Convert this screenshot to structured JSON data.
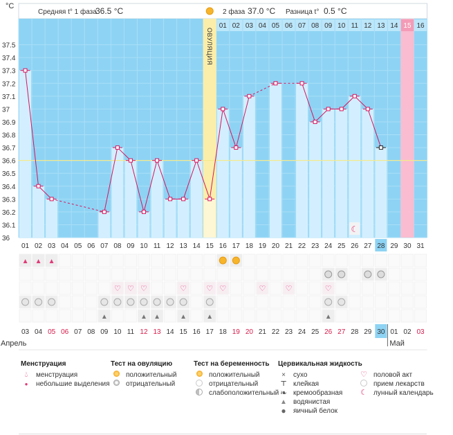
{
  "header": {
    "unit": "°C",
    "phase1_label": "Средняя t° 1 фаза",
    "phase1_value": "36.5 °C",
    "phase2_label": "2 фаза",
    "phase2_value": "37.0 °C",
    "diff_label": "Разница t°",
    "diff_value": "0.5 °C",
    "ovulation_label": "ОВУЛЯЦИЯ"
  },
  "chart_data": {
    "type": "line",
    "title": "",
    "ylabel": "°C",
    "ylim": [
      36.0,
      37.6
    ],
    "y_ticks": [
      "37.5",
      "37.4",
      "37.3",
      "37.2",
      "37.1",
      "37",
      "36.9",
      "36.8",
      "36.7",
      "36.6",
      "36.5",
      "36.4",
      "36.3",
      "36.2",
      "36.1",
      "36"
    ],
    "days": [
      "01",
      "02",
      "03",
      "04",
      "05",
      "06",
      "07",
      "08",
      "09",
      "10",
      "11",
      "12",
      "13",
      "14",
      "15",
      "16",
      "17",
      "18",
      "19",
      "20",
      "21",
      "22",
      "23",
      "24",
      "25",
      "26",
      "27",
      "28",
      "29",
      "30",
      "31"
    ],
    "dates": [
      "03",
      "04",
      "05",
      "06",
      "07",
      "08",
      "09",
      "10",
      "11",
      "12",
      "13",
      "14",
      "15",
      "16",
      "17",
      "18",
      "19",
      "20",
      "21",
      "22",
      "23",
      "24",
      "25",
      "26",
      "27",
      "28",
      "29",
      "30",
      "01",
      "02",
      "03"
    ],
    "date_red": [
      false,
      false,
      true,
      true,
      false,
      false,
      false,
      false,
      false,
      true,
      true,
      false,
      false,
      false,
      false,
      false,
      true,
      true,
      false,
      false,
      false,
      false,
      false,
      true,
      true,
      false,
      false,
      false,
      false,
      false,
      true
    ],
    "phase2_days": [
      "01",
      "02",
      "03",
      "04",
      "05",
      "06",
      "07",
      "08",
      "09",
      "10",
      "11",
      "12",
      "13",
      "14",
      "15",
      "16"
    ],
    "temperatures": [
      37.3,
      36.4,
      36.3,
      null,
      null,
      null,
      36.2,
      36.7,
      36.6,
      36.2,
      36.6,
      36.3,
      36.3,
      36.6,
      36.3,
      37.0,
      36.7,
      37.1,
      null,
      37.2,
      null,
      37.2,
      36.9,
      37.0,
      37.0,
      37.1,
      37.0,
      36.7,
      null,
      null,
      null
    ],
    "coverline": 36.6,
    "ovulation_day": "15",
    "current_day": "28",
    "current_date": "30",
    "menstruation_forecast_day": "30",
    "month_start": "Апрель",
    "month_next": "Май"
  },
  "markers": {
    "menstruation": [
      "01",
      "02",
      "03"
    ],
    "ovulation_test_positive": [
      "16",
      "17"
    ],
    "pregnancy_test": [
      "24",
      "25",
      "27",
      "28"
    ],
    "sex": [
      "08",
      "09",
      "10",
      "13",
      "15",
      "16",
      "19",
      "21",
      "24"
    ],
    "medication": [
      "01",
      "02",
      "03",
      "07",
      "08",
      "09",
      "10",
      "11",
      "12",
      "13",
      "15",
      "24",
      "25"
    ],
    "cervical": [
      "07",
      "10",
      "11",
      "13",
      "15",
      "24"
    ],
    "lunar": "26"
  },
  "legend": {
    "menstruation": {
      "title": "Менструация",
      "items": [
        "менструация",
        "небольшие выделения"
      ]
    },
    "ovulation_test": {
      "title": "Тест на овуляцию",
      "items": [
        "положительный",
        "отрицательный"
      ]
    },
    "pregnancy_test": {
      "title": "Тест на беременность",
      "items": [
        "положительный",
        "отрицательный",
        "слабоположительный"
      ]
    },
    "cervical_fluid": {
      "title": "Цервикальная жидкость",
      "items": [
        "сухо",
        "клейкая",
        "кремообразная",
        "водянистая",
        "яичный белок"
      ]
    },
    "other": {
      "items": [
        "половой акт",
        "прием лекарств",
        "лунный календарь"
      ]
    }
  },
  "icons": {
    "sun": "sun-icon",
    "moon": "moon-icon",
    "heart": "heart-icon",
    "drop": "drop-icon",
    "pill": "pill-icon"
  },
  "colors": {
    "phase1_bg": "#8ed3f4",
    "phase2_bg": "#bce6fa",
    "bar": "#d3efff",
    "ovulation": "#fbeeaa",
    "forecast": "#f9bcd0",
    "line": "#d6155e",
    "current": "#8ed3f4"
  }
}
